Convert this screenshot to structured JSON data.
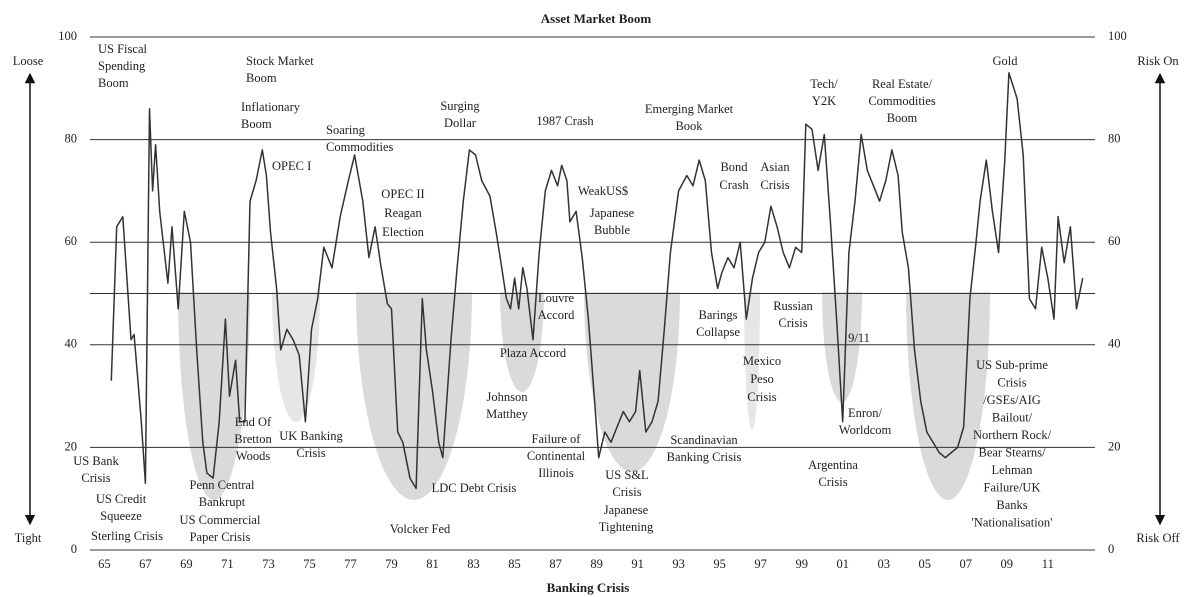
{
  "chart_data": {
    "type": "line",
    "title": "Asset Market Boom",
    "x_label": "Banking Crisis",
    "left_top_label": "Loose",
    "left_bottom_label": "Tight",
    "right_top_label": "Risk On",
    "right_bottom_label": "Risk Off",
    "xlim": [
      1964.3,
      2013.3
    ],
    "xticks": [
      {
        "value": 1965,
        "label": "65"
      },
      {
        "value": 1967,
        "label": "67"
      },
      {
        "value": 1969,
        "label": "69"
      },
      {
        "value": 1971,
        "label": "71"
      },
      {
        "value": 1973,
        "label": "73"
      },
      {
        "value": 1975,
        "label": "75"
      },
      {
        "value": 1977,
        "label": "77"
      },
      {
        "value": 1979,
        "label": "79"
      },
      {
        "value": 1981,
        "label": "81"
      },
      {
        "value": 1983,
        "label": "83"
      },
      {
        "value": 1985,
        "label": "85"
      },
      {
        "value": 1987,
        "label": "87"
      },
      {
        "value": 1989,
        "label": "89"
      },
      {
        "value": 1991,
        "label": "91"
      },
      {
        "value": 1993,
        "label": "93"
      },
      {
        "value": 1995,
        "label": "95"
      },
      {
        "value": 1997,
        "label": "97"
      },
      {
        "value": 1999,
        "label": "99"
      },
      {
        "value": 2001,
        "label": "01"
      },
      {
        "value": 2003,
        "label": "03"
      },
      {
        "value": 2005,
        "label": "05"
      },
      {
        "value": 2007,
        "label": "07"
      },
      {
        "value": 2009,
        "label": "09"
      },
      {
        "value": 2011,
        "label": "11"
      }
    ],
    "ylim": [
      0,
      100
    ],
    "yticks": [
      0,
      20,
      40,
      60,
      80,
      100
    ],
    "y2lim": [
      0,
      100
    ],
    "y2ticks": [
      0,
      20,
      40,
      60,
      80,
      100
    ],
    "reference_line": 50,
    "grid": true,
    "series": [
      {
        "color": "#333333",
        "x": [
          1965.34,
          1965.6,
          1965.9,
          1966.3,
          1966.45,
          1966.8,
          1967.0,
          1967.2,
          1967.35,
          1967.5,
          1967.7,
          1968.1,
          1968.3,
          1968.6,
          1968.9,
          1969.2,
          1969.5,
          1969.8,
          1970.0,
          1970.3,
          1970.6,
          1970.9,
          1971.1,
          1971.4,
          1971.6,
          1971.85,
          1972.1,
          1972.4,
          1972.7,
          1972.9,
          1973.1,
          1973.4,
          1973.6,
          1973.9,
          1974.2,
          1974.5,
          1974.8,
          1975.1,
          1975.4,
          1975.7,
          1976.1,
          1976.5,
          1976.9,
          1977.2,
          1977.6,
          1977.9,
          1978.2,
          1978.5,
          1978.8,
          1979.0,
          1979.3,
          1979.55,
          1979.9,
          1980.2,
          1980.5,
          1980.7,
          1981.0,
          1981.3,
          1981.5,
          1981.9,
          1982.2,
          1982.5,
          1982.8,
          1983.1,
          1983.4,
          1983.8,
          1984.1,
          1984.3,
          1984.6,
          1984.8,
          1985.0,
          1985.2,
          1985.4,
          1985.6,
          1985.9,
          1986.2,
          1986.5,
          1986.8,
          1987.1,
          1987.3,
          1987.55,
          1987.7,
          1988.0,
          1988.3,
          1988.6,
          1988.9,
          1989.1,
          1989.4,
          1989.7,
          1990.0,
          1990.3,
          1990.6,
          1990.9,
          1991.1,
          1991.4,
          1991.7,
          1992.0,
          1992.3,
          1992.6,
          1993.0,
          1993.4,
          1993.7,
          1994.0,
          1994.3,
          1994.6,
          1994.9,
          1995.1,
          1995.4,
          1995.7,
          1996.0,
          1996.3,
          1996.6,
          1996.9,
          1997.2,
          1997.5,
          1997.8,
          1998.1,
          1998.4,
          1998.7,
          1999.0,
          1999.2,
          1999.5,
          1999.8,
          2000.1,
          2000.4,
          2000.7,
          2001.0,
          2001.3,
          2001.6,
          2001.9,
          2002.2,
          2002.5,
          2002.8,
          2003.1,
          2003.4,
          2003.7,
          2003.9,
          2004.2,
          2004.5,
          2004.8,
          2005.1,
          2005.4,
          2005.7,
          2006.0,
          2006.3,
          2006.6,
          2006.9,
          2007.2,
          2007.5,
          2007.7,
          2008.0,
          2008.3,
          2008.6,
          2008.9,
          2009.1,
          2009.5,
          2009.8,
          2010.1,
          2010.4,
          2010.7,
          2011.0,
          2011.3,
          2011.5,
          2011.8,
          2012.1,
          2012.4,
          2012.7
        ],
        "values": [
          33,
          63,
          65,
          41,
          42,
          25,
          13,
          86,
          70,
          79,
          66,
          52,
          63,
          47,
          66,
          60,
          39,
          21,
          15,
          14,
          25,
          45,
          30,
          37,
          25,
          25,
          68,
          72,
          78,
          73,
          62,
          51,
          39,
          43,
          41,
          38,
          25,
          43,
          49,
          59,
          55,
          65,
          72,
          77,
          68,
          57,
          63,
          55,
          48,
          47,
          23,
          21,
          14,
          12,
          49,
          39,
          31,
          21,
          18,
          41,
          55,
          68,
          78,
          77,
          72,
          69,
          62,
          57,
          49,
          47,
          53,
          47,
          55,
          51,
          41,
          58,
          70,
          74,
          71,
          75,
          72,
          64,
          66,
          57,
          45,
          29,
          18,
          23,
          21,
          24,
          27,
          25,
          27,
          35,
          23,
          25,
          29,
          43,
          58,
          70,
          73,
          71,
          76,
          72,
          58,
          51,
          54,
          57,
          55,
          60,
          45,
          53,
          58,
          60,
          67,
          63,
          58,
          55,
          59,
          58,
          83,
          82,
          74,
          81,
          64,
          45,
          25,
          58,
          68,
          81,
          74,
          71,
          68,
          72,
          78,
          73,
          62,
          55,
          39,
          29,
          23,
          21,
          19,
          18,
          19,
          20,
          24,
          49,
          60,
          68,
          76,
          66,
          58,
          76,
          93,
          88,
          77,
          49,
          47,
          59,
          53,
          45,
          65,
          56,
          63,
          47,
          53
        ]
      }
    ],
    "annotations": [
      [
        "US Fiscal",
        "Spending",
        "Boom"
      ],
      [
        "Stock Market",
        "Boom"
      ],
      [
        "Inflationary",
        "Boom"
      ],
      [
        "OPEC I"
      ],
      [
        "Soaring",
        "Commodities"
      ],
      [
        "OPEC II",
        "Reagan",
        "Election"
      ],
      [
        "Surging",
        "Dollar"
      ],
      [
        "1987 Crash"
      ],
      [
        "Emerging Market",
        "Book"
      ],
      [
        "Tech/",
        "Y2K"
      ],
      [
        "Real Estate/",
        "Commodities",
        "Boom"
      ],
      [
        "Gold"
      ],
      [
        "WeakUS$"
      ],
      [
        "Japanese",
        "Bubble"
      ],
      [
        "Bond",
        "Crash"
      ],
      [
        "Asian",
        "Crisis"
      ],
      [
        "Louvre",
        "Accord"
      ],
      [
        "Plaza Accord"
      ],
      [
        "Barings",
        "Collapse"
      ],
      [
        "Russian",
        "Crisis"
      ],
      [
        "9/11"
      ],
      [
        "Mexico",
        "Peso",
        "Crisis"
      ],
      [
        "Johnson",
        "Matthey"
      ],
      [
        "End Of",
        "Bretton",
        "Woods"
      ],
      [
        "UK Banking",
        "Crisis"
      ],
      [
        "Enron/",
        "Worldcom"
      ],
      [
        "Failure of",
        "Continental",
        "Illinois"
      ],
      [
        "Scandinavian",
        "Banking Crisis"
      ],
      [
        "US Sub-prime",
        "Crisis",
        "/GSEs/AIG",
        "Bailout/",
        "Northern Rock/",
        "Bear Stearns/",
        "Lehman",
        "Failure/UK",
        "Banks",
        "'Nationalisation'"
      ],
      [
        "US Bank",
        "Crisis"
      ],
      [
        "US Credit",
        "Squeeze"
      ],
      [
        "Sterling Crisis"
      ],
      [
        "Penn Central",
        "Bankrupt"
      ],
      [
        "US Commercial",
        "Paper Crisis"
      ],
      [
        "LDC Debt Crisis"
      ],
      [
        "Volcker Fed"
      ],
      [
        "US S&L",
        "Crisis"
      ],
      [
        "Japanese",
        "Tightening"
      ],
      [
        "Argentina",
        "Crisis"
      ]
    ]
  }
}
